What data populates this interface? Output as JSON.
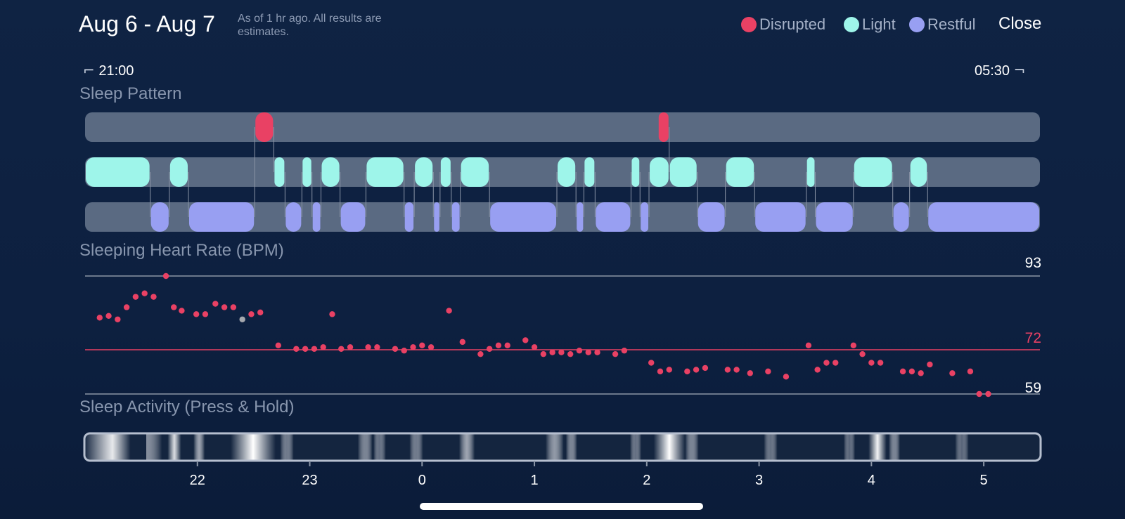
{
  "header": {
    "title": "Aug 6 - Aug 7",
    "subtitle": "As of 1 hr ago. All results are estimates.",
    "close_label": "Close"
  },
  "legend": [
    {
      "label": "Disrupted",
      "color": "#e94164"
    },
    {
      "label": "Light",
      "color": "#9ef5ea"
    },
    {
      "label": "Restful",
      "color": "#989ff2"
    }
  ],
  "time_range": {
    "start": "21:00",
    "end": "05:30"
  },
  "sections": {
    "sleep_pattern": "Sleep Pattern",
    "heart_rate": "Sleeping Heart Rate (BPM)",
    "activity": "Sleep Activity (Press & Hold)"
  },
  "colors": {
    "disrupted": "#e94164",
    "light": "#9ef5ea",
    "restful": "#989ff2",
    "track": "#5a6a82",
    "hr_point": "#e94164",
    "hr_point_gray": "#a5a8ae"
  },
  "sleep_pattern": {
    "time_unit": "hours since 21:00",
    "total_hours": 8.5,
    "disrupted": [
      [
        1.51,
        1.68
      ],
      [
        5.1,
        5.2
      ]
    ],
    "light": [
      [
        0.0,
        0.58
      ],
      [
        0.75,
        0.92
      ],
      [
        1.68,
        1.78
      ],
      [
        1.93,
        2.02
      ],
      [
        2.1,
        2.27
      ],
      [
        2.5,
        2.84
      ],
      [
        2.93,
        3.1
      ],
      [
        3.16,
        3.26
      ],
      [
        3.34,
        3.6
      ],
      [
        4.2,
        4.37
      ],
      [
        4.44,
        4.54
      ],
      [
        4.86,
        4.94
      ],
      [
        5.02,
        5.2
      ],
      [
        5.2,
        5.45
      ],
      [
        5.7,
        5.96
      ],
      [
        6.42,
        6.5
      ],
      [
        6.84,
        7.19
      ],
      [
        7.34,
        7.5
      ]
    ],
    "restful": [
      [
        0.58,
        0.75
      ],
      [
        0.92,
        1.51
      ],
      [
        1.78,
        1.93
      ],
      [
        2.02,
        2.1
      ],
      [
        2.27,
        2.5
      ],
      [
        2.84,
        2.93
      ],
      [
        3.1,
        3.16
      ],
      [
        3.26,
        3.34
      ],
      [
        3.6,
        4.2
      ],
      [
        4.37,
        4.44
      ],
      [
        4.54,
        4.86
      ],
      [
        4.94,
        5.02
      ],
      [
        5.45,
        5.7
      ],
      [
        5.96,
        6.42
      ],
      [
        6.5,
        6.84
      ],
      [
        7.19,
        7.34
      ],
      [
        7.5,
        8.5
      ]
    ]
  },
  "heart_rate": {
    "y_max_label": "93",
    "avg_label": "72",
    "y_min_label": "59",
    "y_max": 93,
    "avg": 72,
    "y_min": 59,
    "points": [
      [
        21.13,
        81
      ],
      [
        21.21,
        81.5
      ],
      [
        21.29,
        80.5
      ],
      [
        21.37,
        84
      ],
      [
        21.45,
        87
      ],
      [
        21.53,
        88
      ],
      [
        21.61,
        87
      ],
      [
        21.72,
        93
      ],
      [
        21.79,
        84
      ],
      [
        21.86,
        83
      ],
      [
        21.99,
        82
      ],
      [
        22.07,
        82
      ],
      [
        22.16,
        85
      ],
      [
        22.24,
        84
      ],
      [
        22.32,
        84
      ],
      [
        22.4,
        80.5,
        "g"
      ],
      [
        22.48,
        82
      ],
      [
        22.56,
        82.5
      ],
      [
        22.72,
        73
      ],
      [
        22.88,
        72
      ],
      [
        22.96,
        72
      ],
      [
        23.04,
        72
      ],
      [
        23.12,
        72.5
      ],
      [
        23.2,
        82
      ],
      [
        23.28,
        72
      ],
      [
        23.36,
        72.5
      ],
      [
        23.52,
        72.5
      ],
      [
        23.6,
        72.5
      ],
      [
        23.76,
        72
      ],
      [
        23.84,
        71.5
      ],
      [
        23.92,
        72.5
      ],
      [
        24.0,
        73
      ],
      [
        24.08,
        72.5
      ],
      [
        24.24,
        83
      ],
      [
        24.36,
        74
      ],
      [
        24.52,
        70.5
      ],
      [
        24.6,
        72
      ],
      [
        24.68,
        73
      ],
      [
        24.76,
        73
      ],
      [
        24.92,
        74.5
      ],
      [
        25.0,
        72.5
      ],
      [
        25.08,
        70.5
      ],
      [
        25.16,
        71
      ],
      [
        25.24,
        71
      ],
      [
        25.32,
        70.5
      ],
      [
        25.4,
        71.5
      ],
      [
        25.48,
        71
      ],
      [
        25.56,
        71
      ],
      [
        25.72,
        70.5
      ],
      [
        25.8,
        71.5
      ],
      [
        26.04,
        68
      ],
      [
        26.12,
        65.5
      ],
      [
        26.2,
        66
      ],
      [
        26.36,
        65.5
      ],
      [
        26.44,
        66
      ],
      [
        26.52,
        66.5
      ],
      [
        26.72,
        66
      ],
      [
        26.8,
        66
      ],
      [
        26.92,
        65
      ],
      [
        27.08,
        65.5
      ],
      [
        27.24,
        64
      ],
      [
        27.44,
        73
      ],
      [
        27.52,
        66
      ],
      [
        27.6,
        68
      ],
      [
        27.68,
        68
      ],
      [
        27.84,
        73
      ],
      [
        27.92,
        70.5
      ],
      [
        28.0,
        68
      ],
      [
        28.08,
        68
      ],
      [
        28.28,
        65.5
      ],
      [
        28.36,
        65.5
      ],
      [
        28.44,
        65
      ],
      [
        28.52,
        67.5
      ],
      [
        28.72,
        65
      ],
      [
        28.88,
        65.5
      ],
      [
        28.96,
        59
      ],
      [
        29.04,
        59
      ]
    ],
    "x_ticks": [
      "22",
      "23",
      "0",
      "1",
      "2",
      "3",
      "4",
      "5"
    ]
  },
  "activity": {
    "time_unit": "hours since 21:00",
    "highlights": [
      {
        "pos": 0.25,
        "w": 0.3,
        "a": 0.9
      },
      {
        "pos": 0.55,
        "w": 0.14,
        "a": 0.5
      },
      {
        "pos": 0.8,
        "w": 0.06,
        "a": 0.85
      },
      {
        "pos": 1.02,
        "w": 0.05,
        "a": 0.6
      },
      {
        "pos": 1.5,
        "w": 0.2,
        "a": 1.0
      },
      {
        "pos": 1.8,
        "w": 0.06,
        "a": 0.4
      },
      {
        "pos": 2.5,
        "w": 0.07,
        "a": 0.45
      },
      {
        "pos": 2.62,
        "w": 0.06,
        "a": 0.35
      },
      {
        "pos": 2.95,
        "w": 0.06,
        "a": 0.4
      },
      {
        "pos": 3.4,
        "w": 0.07,
        "a": 0.6
      },
      {
        "pos": 4.18,
        "w": 0.08,
        "a": 0.55
      },
      {
        "pos": 4.33,
        "w": 0.05,
        "a": 0.45
      },
      {
        "pos": 4.9,
        "w": 0.05,
        "a": 0.35
      },
      {
        "pos": 5.2,
        "w": 0.14,
        "a": 1.0
      },
      {
        "pos": 5.4,
        "w": 0.06,
        "a": 0.45
      },
      {
        "pos": 6.1,
        "w": 0.06,
        "a": 0.35
      },
      {
        "pos": 6.8,
        "w": 0.05,
        "a": 0.3
      },
      {
        "pos": 7.05,
        "w": 0.08,
        "a": 0.95
      },
      {
        "pos": 7.2,
        "w": 0.05,
        "a": 0.45
      },
      {
        "pos": 7.8,
        "w": 0.06,
        "a": 0.3
      }
    ]
  }
}
